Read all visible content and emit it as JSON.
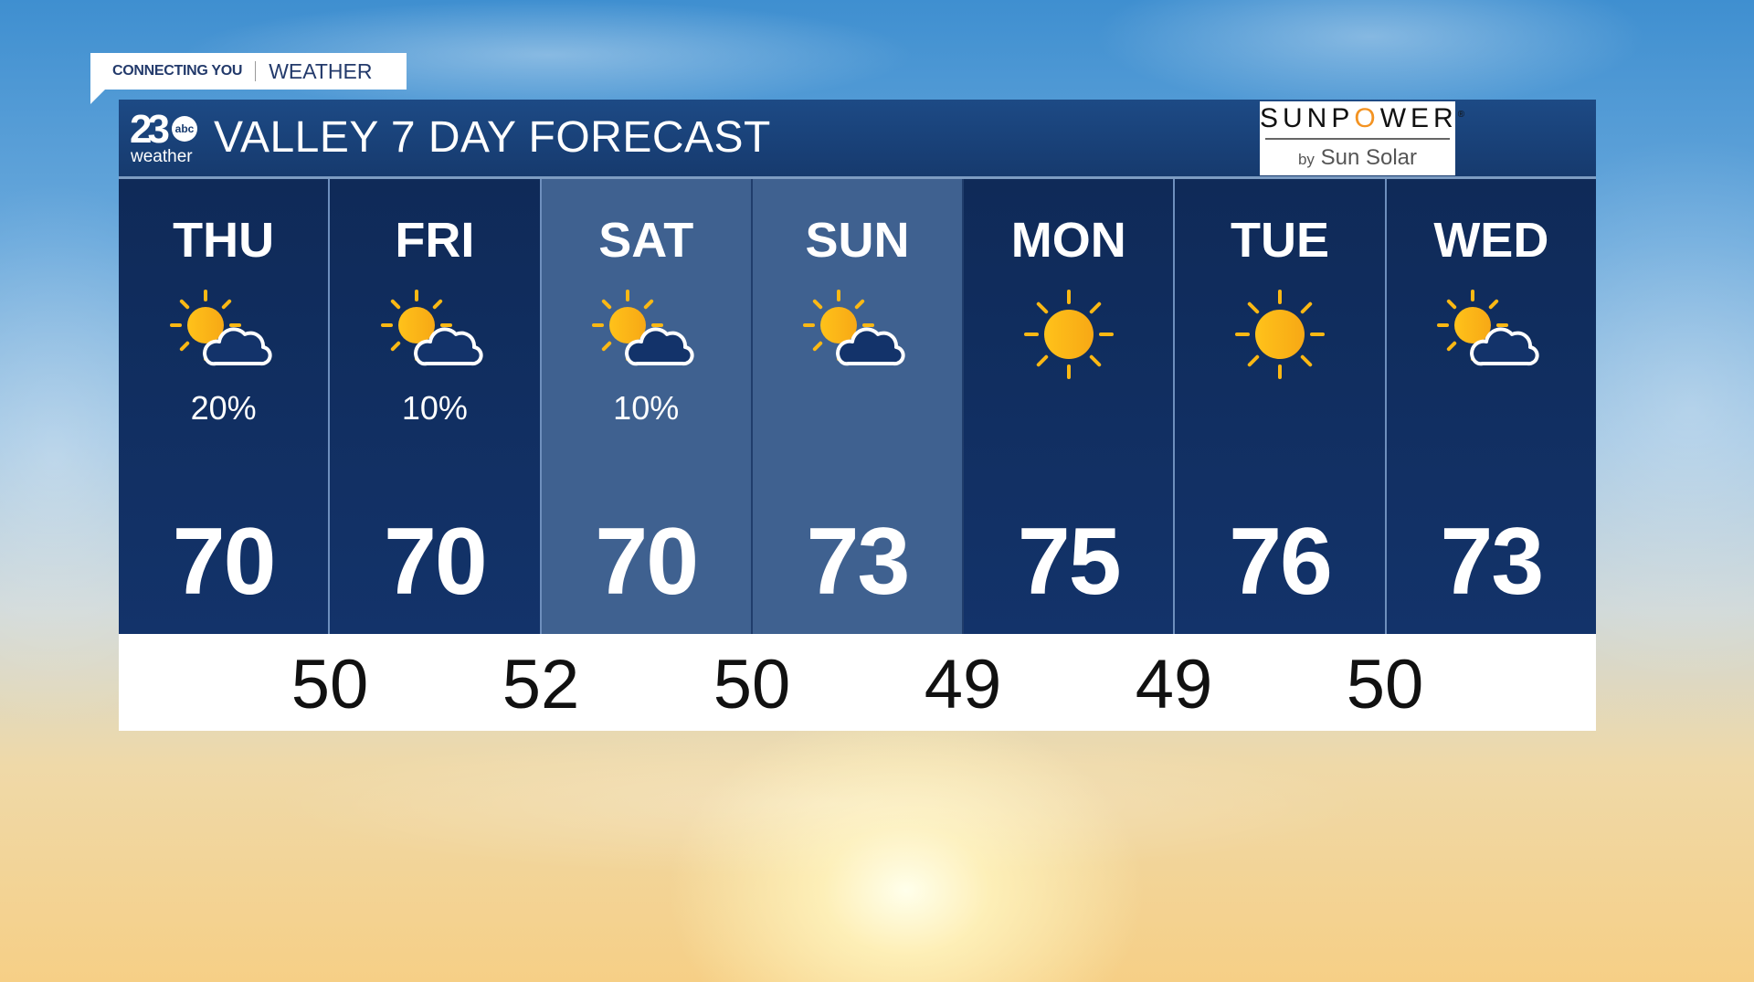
{
  "brand_callout": {
    "left": "CONNECTING YOU",
    "right": "WEATHER"
  },
  "station_logo": {
    "number": "23",
    "network": "abc",
    "sub": "weather"
  },
  "title": "VALLEY 7 DAY FORECAST",
  "sponsor": {
    "name_a": "SUNP",
    "name_o": "O",
    "name_b": "WER",
    "reg": "®",
    "by": "by",
    "sub": "Sun Solar"
  },
  "colors": {
    "panel": "#13336a",
    "highlight": "#3f6190",
    "sun": "#fbb814",
    "sponsor_accent": "#f39322"
  },
  "days": [
    {
      "day": "THU",
      "icon": "partly-sunny-icon",
      "precip": "20%",
      "high": "70",
      "highlighted": false
    },
    {
      "day": "FRI",
      "icon": "partly-sunny-icon",
      "precip": "10%",
      "high": "70",
      "highlighted": false
    },
    {
      "day": "SAT",
      "icon": "partly-sunny-icon",
      "precip": "10%",
      "high": "70",
      "highlighted": true
    },
    {
      "day": "SUN",
      "icon": "partly-sunny-icon",
      "precip": "",
      "high": "73",
      "highlighted": true
    },
    {
      "day": "MON",
      "icon": "sunny-icon",
      "precip": "",
      "high": "75",
      "highlighted": false
    },
    {
      "day": "TUE",
      "icon": "sunny-icon",
      "precip": "",
      "high": "76",
      "highlighted": false
    },
    {
      "day": "WED",
      "icon": "partly-sunny-icon",
      "precip": "",
      "high": "73",
      "highlighted": false
    }
  ],
  "lows": [
    "50",
    "52",
    "50",
    "49",
    "49",
    "50"
  ]
}
